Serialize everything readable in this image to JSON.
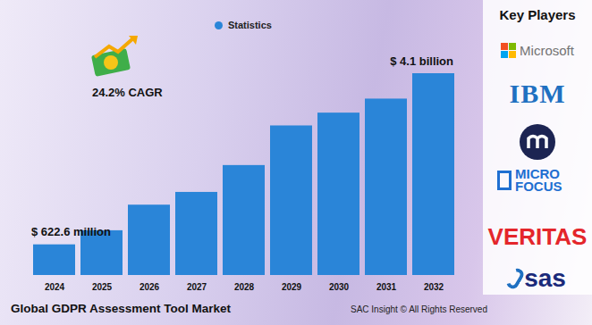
{
  "chart_data": {
    "type": "bar",
    "title": "Global GDPR Assessment Tool Market",
    "caption": "SAC Insight © All Rights Reserved",
    "categories": [
      "2024",
      "2025",
      "2026",
      "2027",
      "2028",
      "2029",
      "2030",
      "2031",
      "2032"
    ],
    "series": [
      {
        "name": "Statistics",
        "color": "#2a85d8",
        "values": [
          622.6,
          909,
          1429,
          1688,
          2234,
          3039,
          3299,
          3584,
          4100
        ],
        "value_labels": [
          "$ 622.6 million",
          null,
          null,
          null,
          null,
          null,
          null,
          null,
          "$ 4.1 billion"
        ]
      }
    ],
    "annotations": [
      "24.2% CAGR"
    ],
    "key_players_title": "Key Players",
    "key_players": [
      "Microsoft",
      "IBM",
      "MICRO FOCUS",
      "VERITAS",
      "sas"
    ],
    "ylim": [
      0,
      4100
    ],
    "data_labels": true,
    "legend": "top",
    "grid": false,
    "tick_labels": "x"
  }
}
